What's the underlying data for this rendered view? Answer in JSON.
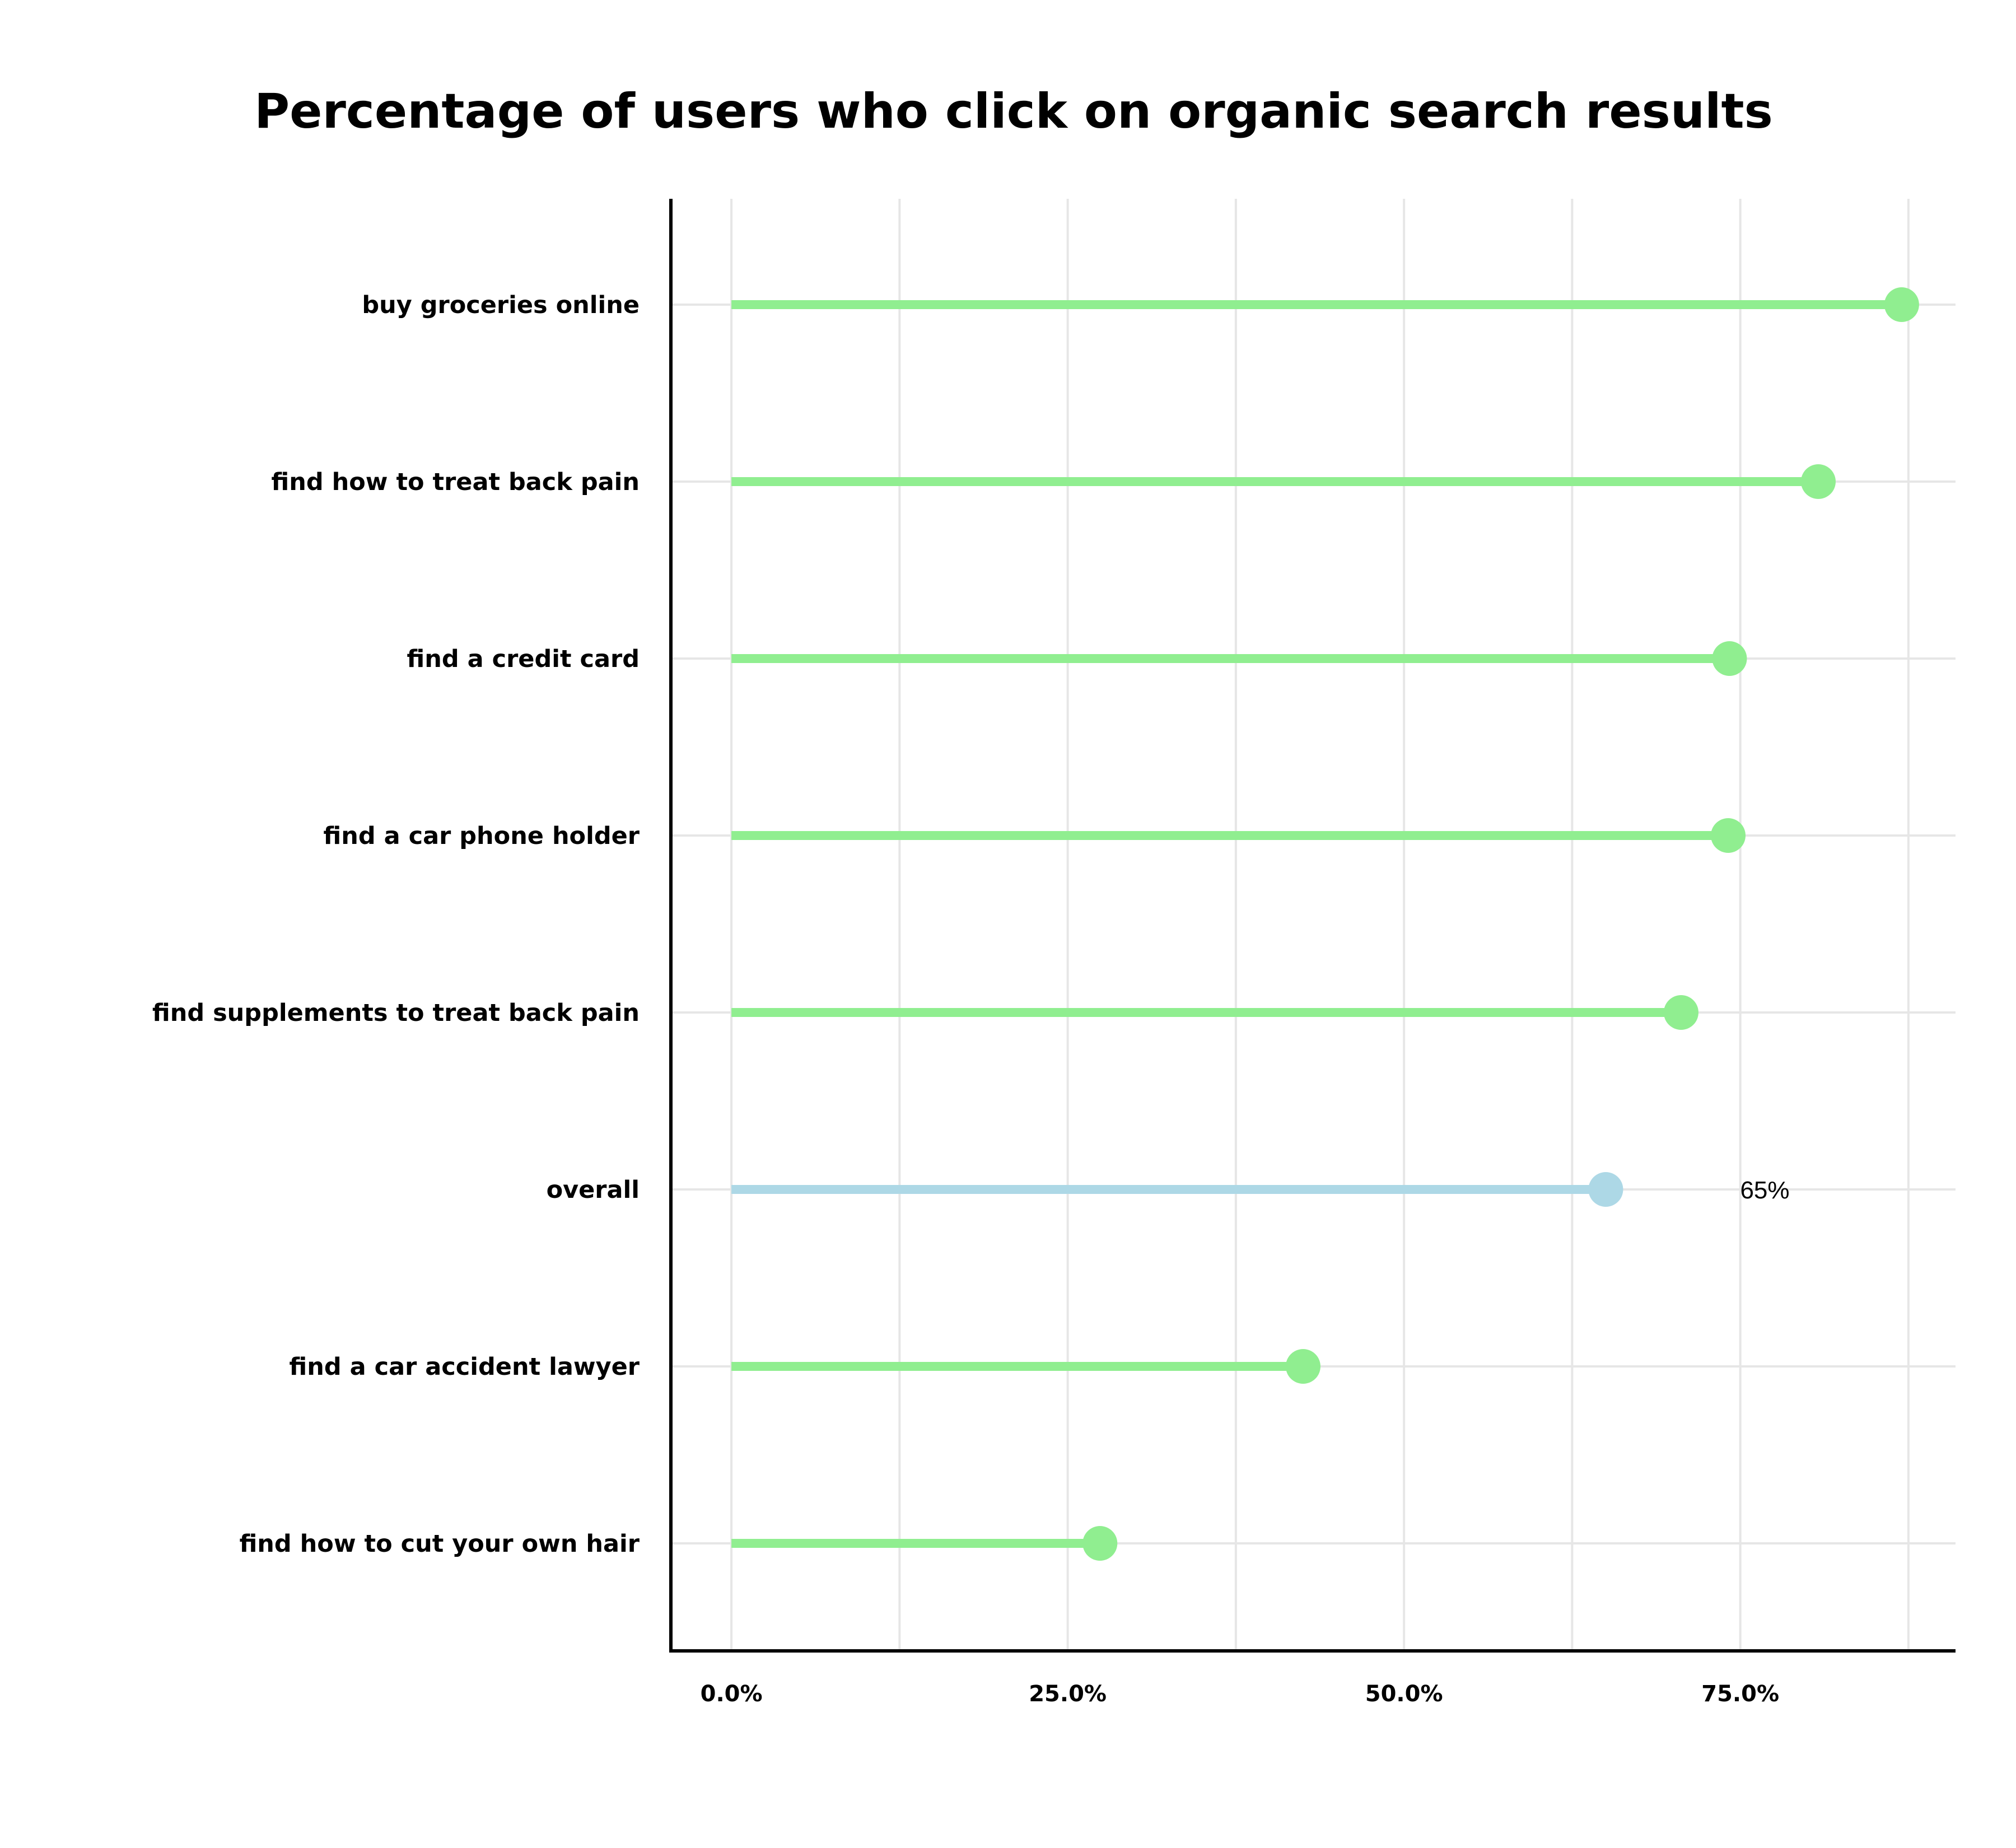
{
  "chart_data": {
    "type": "lollipop",
    "title": "Percentage of users who click on organic search results",
    "xlabel": "",
    "ylabel": "",
    "xlim": [
      -4.5,
      91
    ],
    "grid": true,
    "legend": "none",
    "categories": [
      "buy groceries online",
      "find how to treat back pain",
      "find a credit card",
      "find a car phone holder",
      "find supplements to treat back pain",
      "overall",
      "find a car accident lawyer",
      "find how to cut your own hair"
    ],
    "values": [
      87,
      80.8,
      74.2,
      74.1,
      70.6,
      65,
      42.5,
      27.4
    ],
    "highlight_category": "overall",
    "annotations": [
      {
        "category": "overall",
        "text": "65%"
      }
    ],
    "ticks": [
      {
        "value": 0,
        "label": "0.0%"
      },
      {
        "value": 25,
        "label": "25.0%"
      },
      {
        "value": 50,
        "label": "50.0%"
      },
      {
        "value": 75,
        "label": "75.0%"
      }
    ],
    "minor_gridlines": [
      12.5,
      37.5,
      62.5,
      87.5
    ],
    "colors": {
      "default": "#90ee90",
      "highlight": "#add8e6",
      "grid": "#e6e6e6",
      "axis": "#000000"
    }
  }
}
